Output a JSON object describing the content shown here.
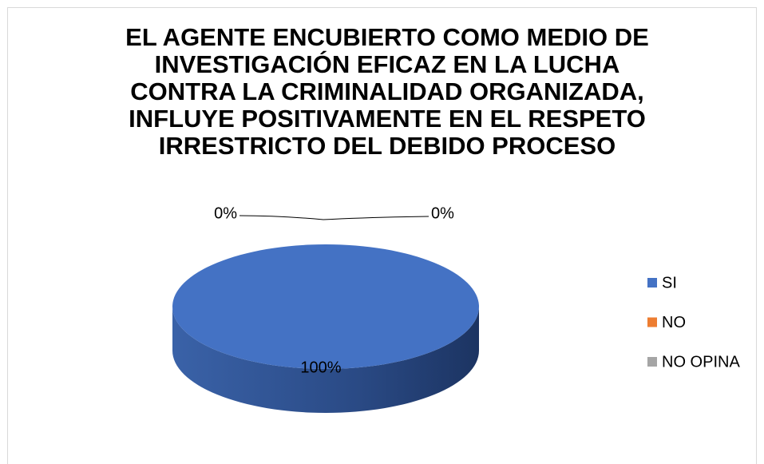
{
  "chart_data": {
    "type": "pie",
    "title": "EL AGENTE ENCUBIERTO COMO MEDIO DE INVESTIGACIÓN EFICAZ EN LA LUCHA CONTRA LA CRIMINALIDAD ORGANIZADA, INFLUYE POSITIVAMENTE EN EL RESPETO IRRESTRICTO DEL DEBIDO PROCESO",
    "categories": [
      "SI",
      "NO",
      "NO OPINA"
    ],
    "values": [
      100,
      0,
      0
    ],
    "value_labels": [
      "100%",
      "0%",
      "0%"
    ],
    "colors": [
      "#4472c4",
      "#ed7d31",
      "#a5a5a5"
    ],
    "legend": "right"
  }
}
